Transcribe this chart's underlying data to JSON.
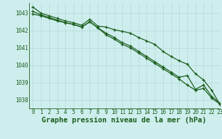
{
  "title": "Graphe pression niveau de la mer (hPa)",
  "background_color": "#ceeeed",
  "grid_color": "#b0d8d8",
  "line_color": "#1a5c1a",
  "xlim": [
    -0.5,
    23
  ],
  "ylim": [
    1037.5,
    1043.6
  ],
  "yticks": [
    1038,
    1039,
    1040,
    1041,
    1042,
    1043
  ],
  "xticks": [
    0,
    1,
    2,
    3,
    4,
    5,
    6,
    7,
    8,
    9,
    10,
    11,
    12,
    13,
    14,
    15,
    16,
    17,
    18,
    19,
    20,
    21,
    22,
    23
  ],
  "series": [
    [
      1043.35,
      1043.0,
      1042.85,
      1042.7,
      1042.55,
      1042.45,
      1042.3,
      1042.65,
      1042.25,
      1042.2,
      1042.05,
      1041.95,
      1041.85,
      1041.6,
      1041.4,
      1041.2,
      1040.8,
      1040.5,
      1040.25,
      1040.05,
      1039.5,
      1039.15,
      1038.55,
      1037.75
    ],
    [
      1043.1,
      1042.9,
      1042.75,
      1042.6,
      1042.45,
      1042.35,
      1042.2,
      1042.5,
      1042.15,
      1041.85,
      1041.6,
      1041.3,
      1041.1,
      1040.8,
      1040.5,
      1040.2,
      1039.9,
      1039.6,
      1039.3,
      1039.4,
      1038.6,
      1038.85,
      1038.2,
      1037.8
    ],
    [
      1042.95,
      1042.85,
      1042.7,
      1042.55,
      1042.45,
      1042.35,
      1042.2,
      1042.5,
      1042.15,
      1041.75,
      1041.5,
      1041.2,
      1041.0,
      1040.7,
      1040.4,
      1040.1,
      1039.8,
      1039.5,
      1039.2,
      1038.85,
      1038.55,
      1038.65,
      1038.1,
      1037.75
    ]
  ],
  "marker": "+",
  "markersize": 3.5,
  "linewidth": 0.9,
  "title_fontsize": 7.5,
  "tick_fontsize": 5.5
}
